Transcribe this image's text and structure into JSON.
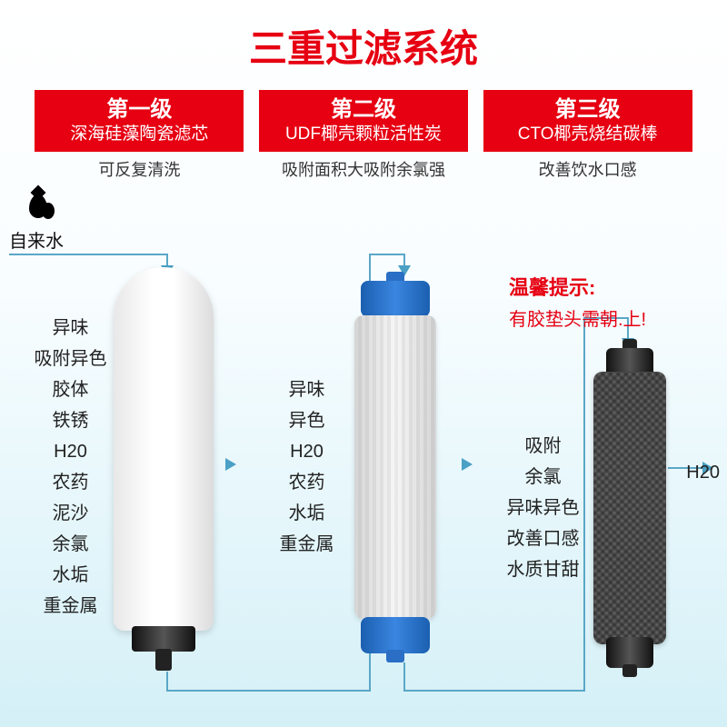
{
  "title": "三重过滤系统",
  "colors": {
    "primary_red": "#e60012",
    "line": "#5aa7c7",
    "bg_gradient_top": "#ffffff",
    "bg_gradient_bottom": "#d4f0f7"
  },
  "input_label": "自来水",
  "output_label": "H20",
  "tip": {
    "heading": "温馨提示:",
    "text": "有胶垫头需朝.上!"
  },
  "stages": [
    {
      "level": "第一级",
      "name": "深海硅藻陶瓷滤芯",
      "desc": "可反复清洗",
      "removes": [
        "异味",
        "吸附异色",
        "胶体",
        "铁锈",
        "H20",
        "农药",
        "泥沙",
        "余氯",
        "水垢",
        "重金属"
      ]
    },
    {
      "level": "第二级",
      "name": "UDF椰壳颗粒活性炭",
      "desc": "吸附面积大吸附余氯强",
      "removes": [
        "异味",
        "异色",
        "H20",
        "农药",
        "水垢",
        "重金属"
      ]
    },
    {
      "level": "第三级",
      "name": "CTO椰壳烧结碳棒",
      "desc": "改善饮水口感",
      "removes": [
        "吸附",
        "余氯",
        "异味异色",
        "改善口感",
        "水质甘甜"
      ]
    }
  ]
}
